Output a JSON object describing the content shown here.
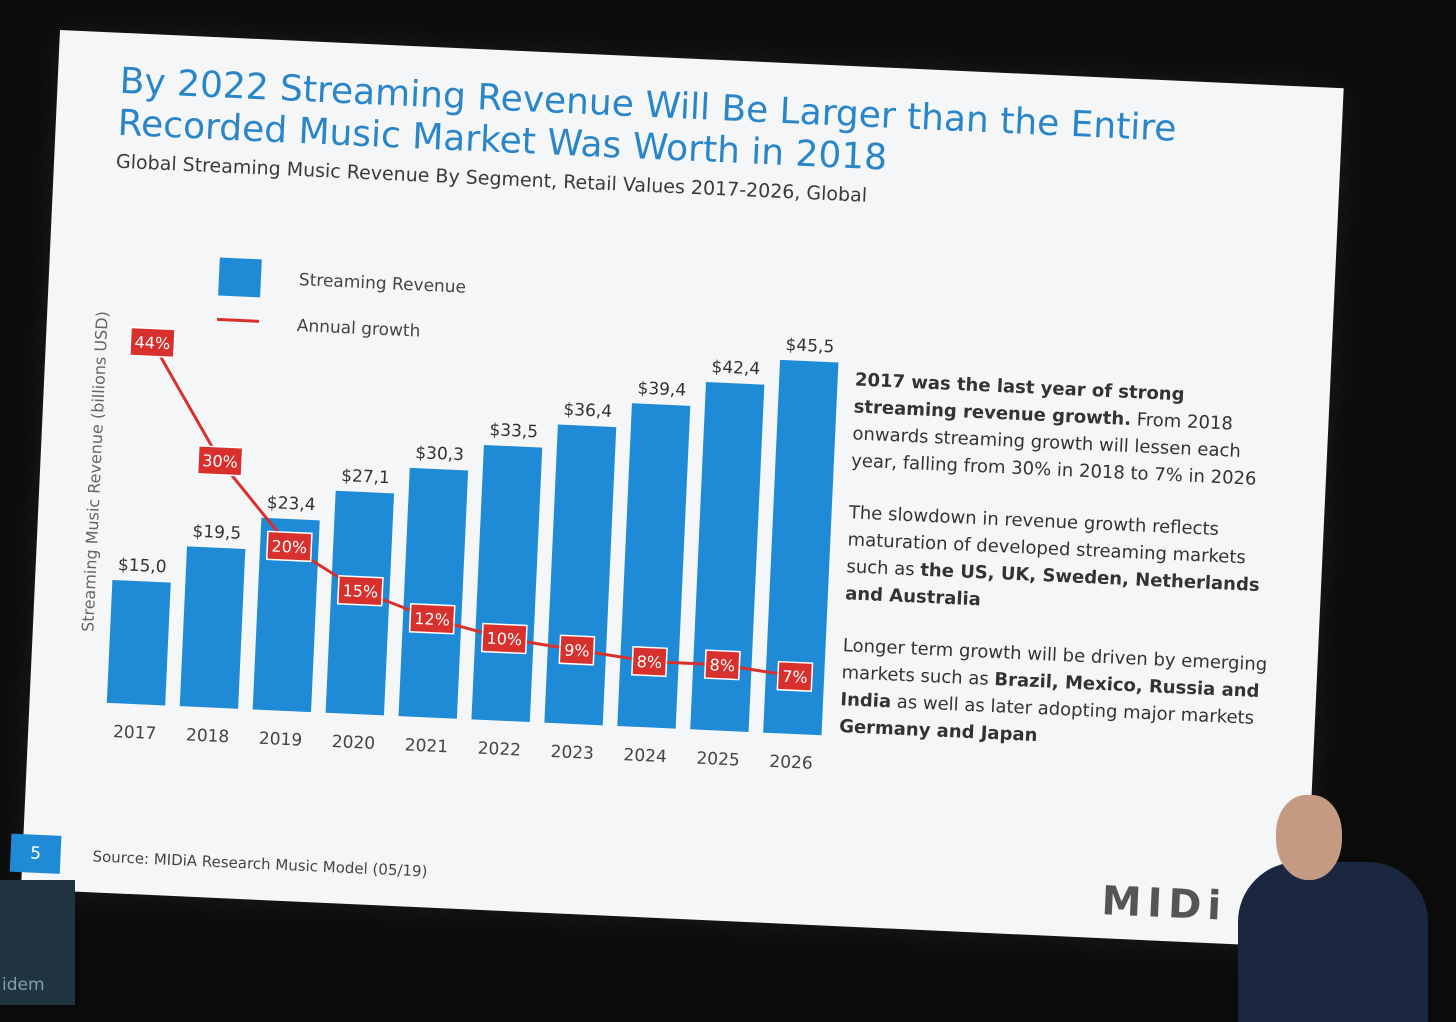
{
  "slide": {
    "title": "By 2022 Streaming Revenue Will Be Larger than the Entire Recorded Music Market Was Worth in 2018",
    "subtitle": "Global Streaming Music Revenue By Segment, Retail Values 2017-2026, Global",
    "page_number": "5",
    "source": "Source: MIDiA Research Music Model (05/19)",
    "logo": "MIDi",
    "notes": [
      {
        "bold": "2017 was the last year of strong streaming revenue growth.",
        "text": " From 2018 onwards streaming growth will lessen each year, falling from 30% in 2018 to 7% in 2026"
      },
      {
        "text": "The slowdown in revenue growth reflects maturation of developed streaming markets such as ",
        "bold": "the US, UK, Sweden, Netherlands and Australia"
      },
      {
        "text1": "Longer term growth will be driven by emerging markets such as ",
        "bold1": "Brazil, Mexico, Russia and India",
        "text2": " as well as later adopting major markets ",
        "bold2": "Germany and Japan"
      }
    ]
  },
  "podium_label": "idem",
  "chart_data": {
    "type": "bar",
    "title": "By 2022 Streaming Revenue Will Be Larger than the Entire Recorded Music Market Was Worth in 2018",
    "subtitle": "Global Streaming Music Revenue By Segment, Retail Values 2017-2026, Global",
    "ylabel": "Streaming Music Revenue (billions USD)",
    "xlabel": "",
    "categories": [
      "2017",
      "2018",
      "2019",
      "2020",
      "2021",
      "2022",
      "2023",
      "2024",
      "2025",
      "2026"
    ],
    "series": [
      {
        "name": "Streaming Revenue",
        "type": "bar",
        "color": "#1f8ad6",
        "values": [
          15.0,
          19.5,
          23.4,
          27.1,
          30.3,
          33.5,
          36.4,
          39.4,
          42.4,
          45.5
        ],
        "labels": [
          "$15,0",
          "$19,5",
          "$23,4",
          "$27,1",
          "$30,3",
          "$33,5",
          "$36,4",
          "$39,4",
          "$42,4",
          "$45,5"
        ]
      },
      {
        "name": "Annual growth",
        "type": "line",
        "color": "#d8302c",
        "values": [
          44,
          30,
          20,
          15,
          12,
          10,
          9,
          8,
          8,
          7
        ],
        "labels": [
          "44%",
          "30%",
          "20%",
          "15%",
          "12%",
          "10%",
          "9%",
          "8%",
          "8%",
          "7%"
        ]
      }
    ],
    "ylim": [
      0,
      50
    ],
    "growth_ylim": [
      0,
      48
    ],
    "grid": false,
    "legend": "top-left"
  }
}
